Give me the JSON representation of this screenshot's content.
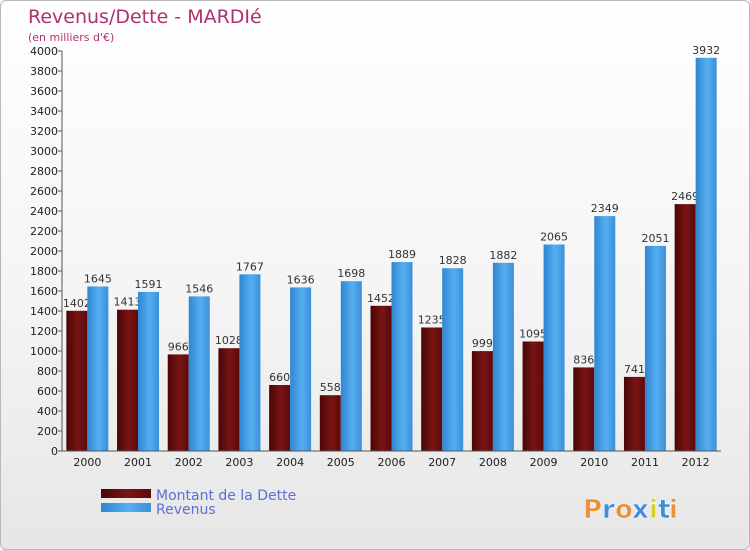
{
  "chart_data": {
    "type": "bar",
    "title": "Revenus/Dette - MARDIé",
    "subtitle": "(en milliers d'€)",
    "categories": [
      "2000",
      "2001",
      "2002",
      "2003",
      "2004",
      "2005",
      "2006",
      "2007",
      "2008",
      "2009",
      "2010",
      "2011",
      "2012"
    ],
    "series": [
      {
        "name": "Montant de la Dette",
        "color": "#6e0f0f",
        "values": [
          1402,
          1413,
          966,
          1028,
          660,
          558,
          1452,
          1235,
          999,
          1095,
          836,
          741,
          2469
        ],
        "labels": [
          "1402",
          "1413",
          "966",
          "1028",
          "660",
          "558",
          "1452",
          "1235",
          "999",
          "1095",
          "836",
          "741",
          "2469"
        ]
      },
      {
        "name": "Revenus",
        "color": "#3f9ae0",
        "values": [
          1645,
          1591,
          1546,
          1767,
          1636,
          1698,
          1889,
          1828,
          1882,
          2065,
          2349,
          2051,
          3932
        ],
        "labels": [
          "1645",
          "1591",
          "1546",
          "1767",
          "1636",
          "1698",
          "1889",
          "1828",
          "1882",
          "2065",
          "2349",
          "2051",
          "3932"
        ]
      }
    ],
    "ylim": [
      0,
      4000
    ],
    "yticks": [
      "0",
      "200",
      "400",
      "600",
      "800",
      "1000",
      "1200",
      "1400",
      "1600",
      "1800",
      "2000",
      "2200",
      "2400",
      "2600",
      "2800",
      "3000",
      "3200",
      "3400",
      "3600",
      "3800",
      "4000"
    ],
    "grid": false,
    "legend_position": "bottom-left"
  },
  "logo": {
    "letters": [
      "P",
      "r",
      "o",
      "x",
      "i",
      "t",
      "i"
    ],
    "colors": [
      "#e8913a",
      "#3f8fd6",
      "#e8913a",
      "#3f8fd6",
      "#d6d02a",
      "#3f8fd6",
      "#e8913a"
    ]
  }
}
